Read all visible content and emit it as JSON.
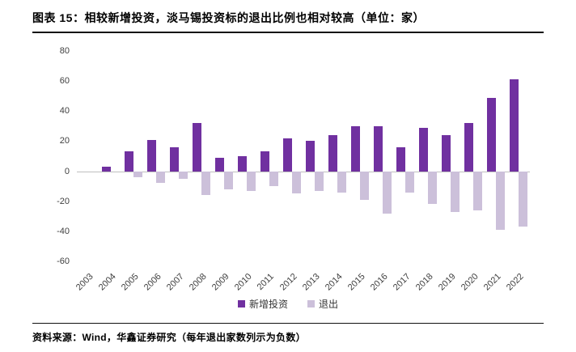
{
  "figure": {
    "title": "图表 15：相较新增投资，淡马锡投资标的退出比例也相对较高（单位：家）"
  },
  "source_note": "资料来源：Wind，华鑫证券研究（每年退出家数列示为负数）",
  "chart_data": {
    "type": "bar",
    "title": "相较新增投资，淡马锡投资标的退出比例也相对较高（单位：家）",
    "categories": [
      "2003",
      "2004",
      "2005",
      "2006",
      "2007",
      "2008",
      "2009",
      "2010",
      "2011",
      "2012",
      "2013",
      "2014",
      "2015",
      "2016",
      "2017",
      "2018",
      "2019",
      "2020",
      "2021",
      "2022"
    ],
    "series": [
      {
        "name": "新增投资",
        "color": "#7030A0",
        "values": [
          0,
          3,
          13,
          21,
          16,
          32,
          9,
          10,
          13,
          22,
          20,
          24,
          30,
          30,
          16,
          29,
          24,
          32,
          49,
          61
        ]
      },
      {
        "name": "退出",
        "color": "#CCC0DA",
        "values": [
          0,
          0,
          -4,
          -8,
          -5,
          -16,
          -12,
          -13,
          -10,
          -15,
          -13,
          -14,
          -19,
          -28,
          -14,
          -22,
          -27,
          -26,
          -39,
          -37
        ]
      }
    ],
    "xlabel": "",
    "ylabel": "",
    "ylim": [
      -60,
      80
    ],
    "yticks": [
      80,
      60,
      40,
      20,
      0,
      -20,
      -40,
      -60
    ],
    "grid": false,
    "legend_position": "bottom",
    "note": "每年退出家数列示为负数"
  }
}
